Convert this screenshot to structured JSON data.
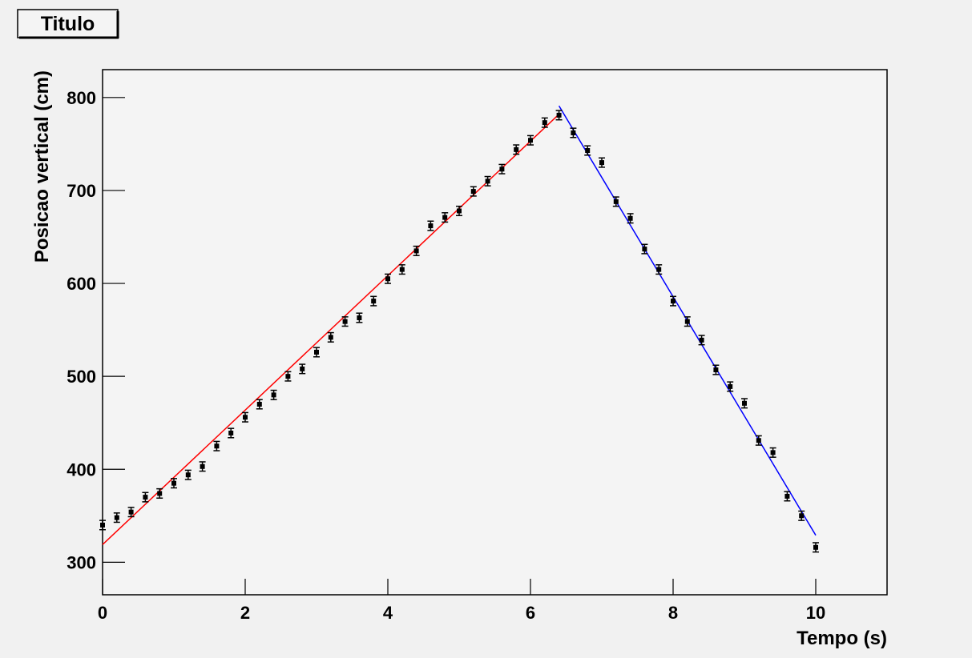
{
  "chart_data": {
    "type": "scatter",
    "title": "Titulo",
    "xlabel": "Tempo (s)",
    "ylabel": "Posicao vertical (cm)",
    "color": "#000000",
    "x": [
      0,
      0.2,
      0.4,
      0.6,
      0.8,
      1.0,
      1.2,
      1.4,
      1.6,
      1.8,
      2.0,
      2.2,
      2.4,
      2.6,
      2.8,
      3.0,
      3.2,
      3.4,
      3.6,
      3.8,
      4.0,
      4.2,
      4.4,
      4.6,
      4.8,
      5.0,
      5.2,
      5.4,
      5.6,
      5.8,
      6.0,
      6.2,
      6.4,
      6.6,
      6.8,
      7.0,
      7.2,
      7.4,
      7.6,
      7.8,
      8.0,
      8.2,
      8.4,
      8.6,
      8.8,
      9.0,
      9.2,
      9.4,
      9.6,
      9.8,
      10.0
    ],
    "values": [
      340,
      348,
      354,
      370,
      374,
      385,
      394,
      403,
      425,
      439,
      456,
      470,
      480,
      500,
      508,
      526,
      542,
      559,
      563,
      581,
      605,
      615,
      635,
      662,
      671,
      678,
      699,
      710,
      723,
      744,
      754,
      773,
      781,
      762,
      743,
      730,
      688,
      670,
      637,
      615,
      581,
      559,
      539,
      507,
      489,
      471,
      431,
      418,
      371,
      350,
      316
    ],
    "error": 5,
    "fits": [
      {
        "color": "#ff0000",
        "x": [
          0,
          6.4
        ],
        "y": [
          319,
          782
        ]
      },
      {
        "color": "#0000ff",
        "x": [
          6.4,
          10
        ],
        "y": [
          791,
          329
        ]
      }
    ],
    "xlim": [
      0,
      11
    ],
    "xticks": [
      0,
      2,
      4,
      6,
      8,
      10
    ],
    "ylim": [
      265,
      830
    ],
    "yticks": [
      300,
      400,
      500,
      600,
      700,
      800
    ]
  }
}
